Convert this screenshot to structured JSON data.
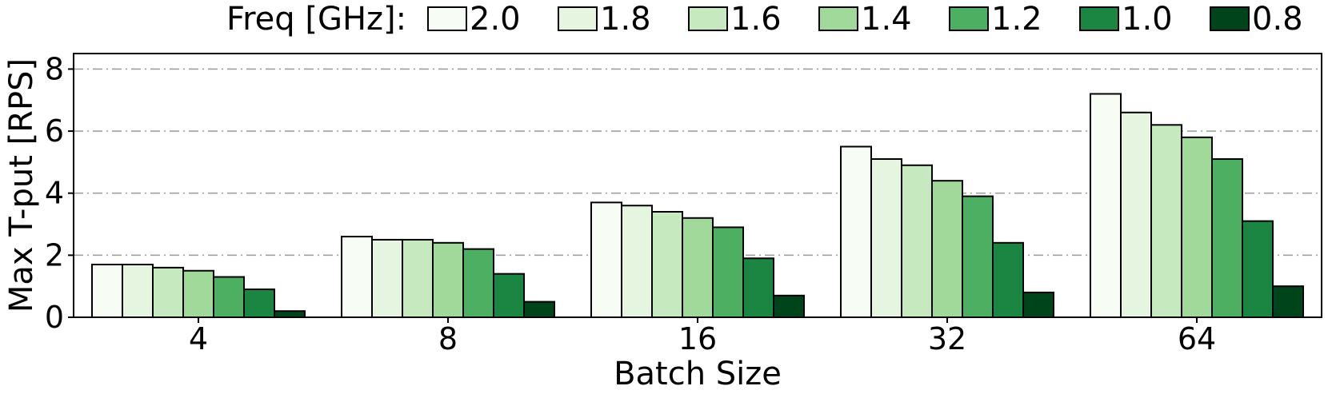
{
  "chart_data": {
    "type": "bar",
    "xlabel": "Batch Size",
    "ylabel": "Max T-put [RPS]",
    "ylim": [
      0,
      8.5
    ],
    "yticks": [
      0,
      2,
      4,
      6,
      8
    ],
    "grid": "horizontal dash-dot",
    "legend_title": "Freq [GHz]:",
    "legend_position": "top",
    "categories": [
      "4",
      "8",
      "16",
      "32",
      "64"
    ],
    "series": [
      {
        "name": "2.0",
        "color": "#f7fcf5",
        "values": [
          1.7,
          2.6,
          3.7,
          5.5,
          7.2
        ]
      },
      {
        "name": "1.8",
        "color": "#e5f5e0",
        "values": [
          1.7,
          2.5,
          3.6,
          5.1,
          6.6
        ]
      },
      {
        "name": "1.6",
        "color": "#c7e9c0",
        "values": [
          1.6,
          2.5,
          3.4,
          4.9,
          6.2
        ]
      },
      {
        "name": "1.4",
        "color": "#a1d99b",
        "values": [
          1.5,
          2.4,
          3.2,
          4.4,
          5.8
        ]
      },
      {
        "name": "1.2",
        "color": "#4daf62",
        "values": [
          1.3,
          2.2,
          2.9,
          3.9,
          5.1
        ]
      },
      {
        "name": "1.0",
        "color": "#1b8641",
        "values": [
          0.9,
          1.4,
          1.9,
          2.4,
          3.1
        ]
      },
      {
        "name": "0.8",
        "color": "#00441b",
        "values": [
          0.2,
          0.5,
          0.7,
          0.8,
          1.0
        ]
      }
    ]
  }
}
